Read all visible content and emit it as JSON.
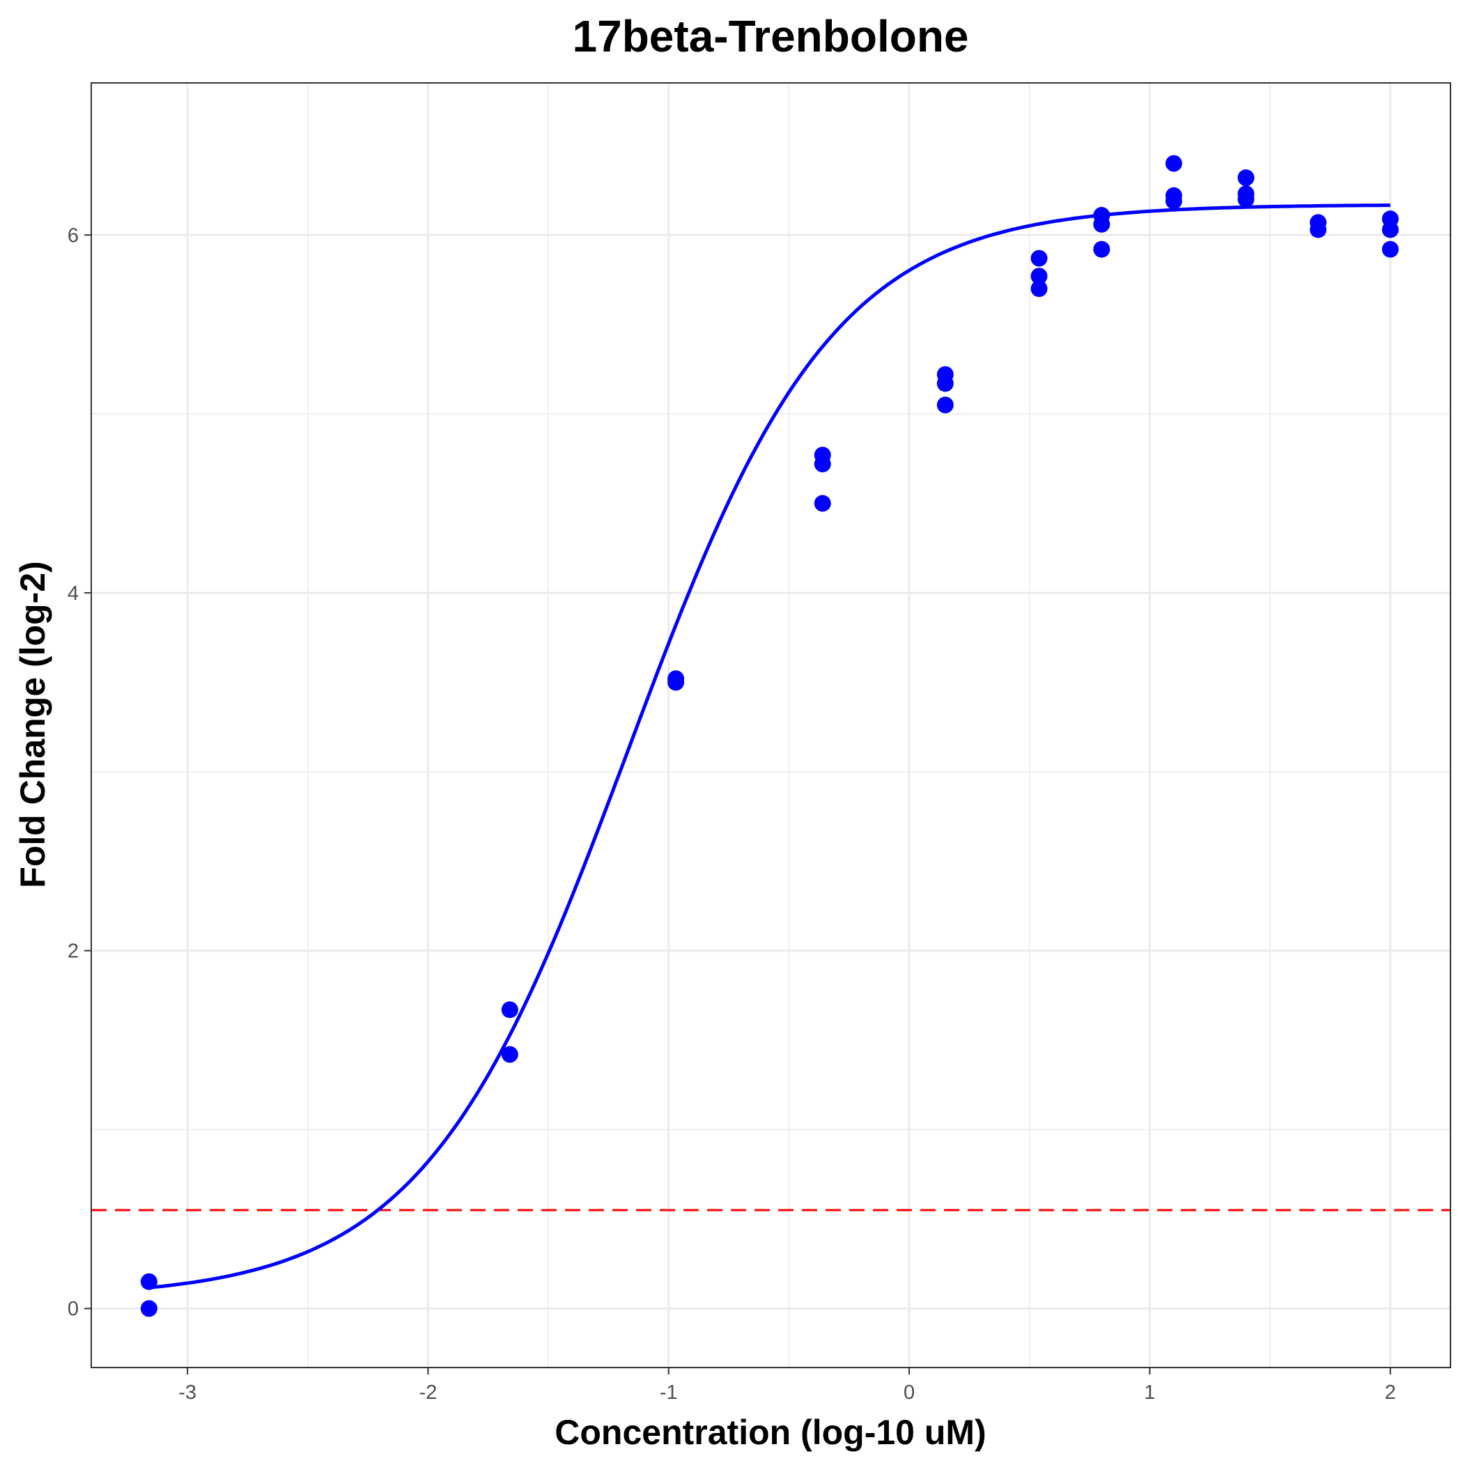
{
  "chart_data": {
    "type": "scatter",
    "title": "17beta-Trenbolone",
    "xlabel": "Concentration (log-10 uM)",
    "ylabel": "Fold Change (log-2)",
    "xlim": [
      -3.4,
      2.25
    ],
    "ylim": [
      -0.33,
      6.85
    ],
    "x_ticks": [
      -3,
      -2,
      -1,
      0,
      1,
      2
    ],
    "y_ticks": [
      0,
      2,
      4,
      6
    ],
    "grid": true,
    "legend": "none",
    "colors": {
      "points": "#0000ff",
      "curve": "#0000ff",
      "threshold": "#ff0000"
    },
    "threshold_y": 0.55,
    "fit_curve": {
      "bottom": 0.06,
      "top": 6.17,
      "log_ec50": -1.17,
      "hill": 1.02,
      "x_range": [
        -3.16,
        2.0
      ]
    },
    "points": [
      {
        "x": -3.16,
        "y": 0.15
      },
      {
        "x": -3.16,
        "y": 0.0
      },
      {
        "x": -1.66,
        "y": 1.67
      },
      {
        "x": -1.66,
        "y": 1.42
      },
      {
        "x": -0.97,
        "y": 3.52
      },
      {
        "x": -0.97,
        "y": 3.5
      },
      {
        "x": -0.36,
        "y": 4.77
      },
      {
        "x": -0.36,
        "y": 4.72
      },
      {
        "x": -0.36,
        "y": 4.5
      },
      {
        "x": 0.15,
        "y": 5.22
      },
      {
        "x": 0.15,
        "y": 5.17
      },
      {
        "x": 0.15,
        "y": 5.05
      },
      {
        "x": 0.54,
        "y": 5.87
      },
      {
        "x": 0.54,
        "y": 5.77
      },
      {
        "x": 0.54,
        "y": 5.7
      },
      {
        "x": 0.8,
        "y": 6.11
      },
      {
        "x": 0.8,
        "y": 6.06
      },
      {
        "x": 0.8,
        "y": 5.92
      },
      {
        "x": 1.1,
        "y": 6.4
      },
      {
        "x": 1.1,
        "y": 6.22
      },
      {
        "x": 1.1,
        "y": 6.19
      },
      {
        "x": 1.4,
        "y": 6.32
      },
      {
        "x": 1.4,
        "y": 6.23
      },
      {
        "x": 1.4,
        "y": 6.2
      },
      {
        "x": 1.7,
        "y": 6.07
      },
      {
        "x": 1.7,
        "y": 6.03
      },
      {
        "x": 2.0,
        "y": 6.09
      },
      {
        "x": 2.0,
        "y": 6.03
      },
      {
        "x": 2.0,
        "y": 5.92
      }
    ]
  }
}
